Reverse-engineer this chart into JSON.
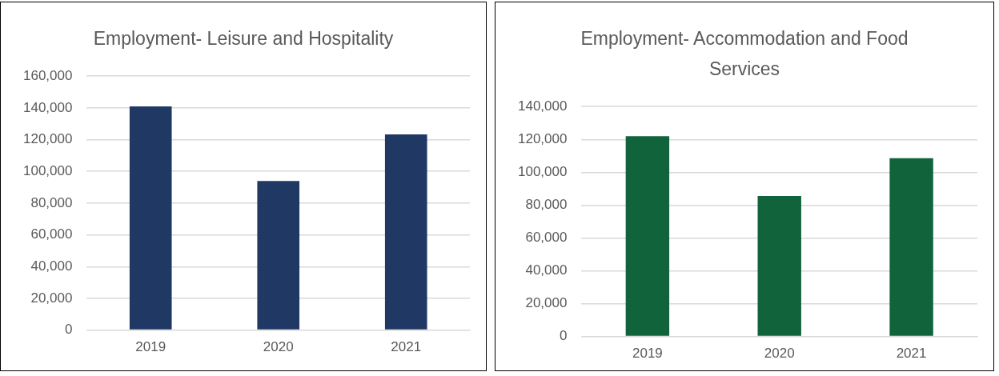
{
  "chart_data": [
    {
      "type": "bar",
      "title": "Employment- Leisure and Hospitality",
      "categories": [
        "2019",
        "2020",
        "2021"
      ],
      "values": [
        141000,
        94000,
        123300
      ],
      "color": "#1f3864",
      "ylim": [
        0,
        160000
      ],
      "yticks": [
        {
          "value": 0,
          "label": "0"
        },
        {
          "value": 20000,
          "label": "20,000"
        },
        {
          "value": 40000,
          "label": "40,000"
        },
        {
          "value": 60000,
          "label": "60,000"
        },
        {
          "value": 80000,
          "label": "80,000"
        },
        {
          "value": 100000,
          "label": "100,000"
        },
        {
          "value": 120000,
          "label": "120,000"
        },
        {
          "value": 140000,
          "label": "140,000"
        },
        {
          "value": 160000,
          "label": "160,000"
        }
      ],
      "grid": "y"
    },
    {
      "type": "bar",
      "title": "Employment- Accommodation and Food Services",
      "categories": [
        "2019",
        "2020",
        "2021"
      ],
      "values": [
        122000,
        85600,
        108600
      ],
      "color": "#10633b",
      "ylim": [
        0,
        140000
      ],
      "yticks": [
        {
          "value": 0,
          "label": "0"
        },
        {
          "value": 20000,
          "label": "20,000"
        },
        {
          "value": 40000,
          "label": "40,000"
        },
        {
          "value": 60000,
          "label": "60,000"
        },
        {
          "value": 80000,
          "label": "80,000"
        },
        {
          "value": 100000,
          "label": "100,000"
        },
        {
          "value": 120000,
          "label": "120,000"
        },
        {
          "value": 140000,
          "label": "140,000"
        }
      ],
      "grid": "y"
    }
  ]
}
